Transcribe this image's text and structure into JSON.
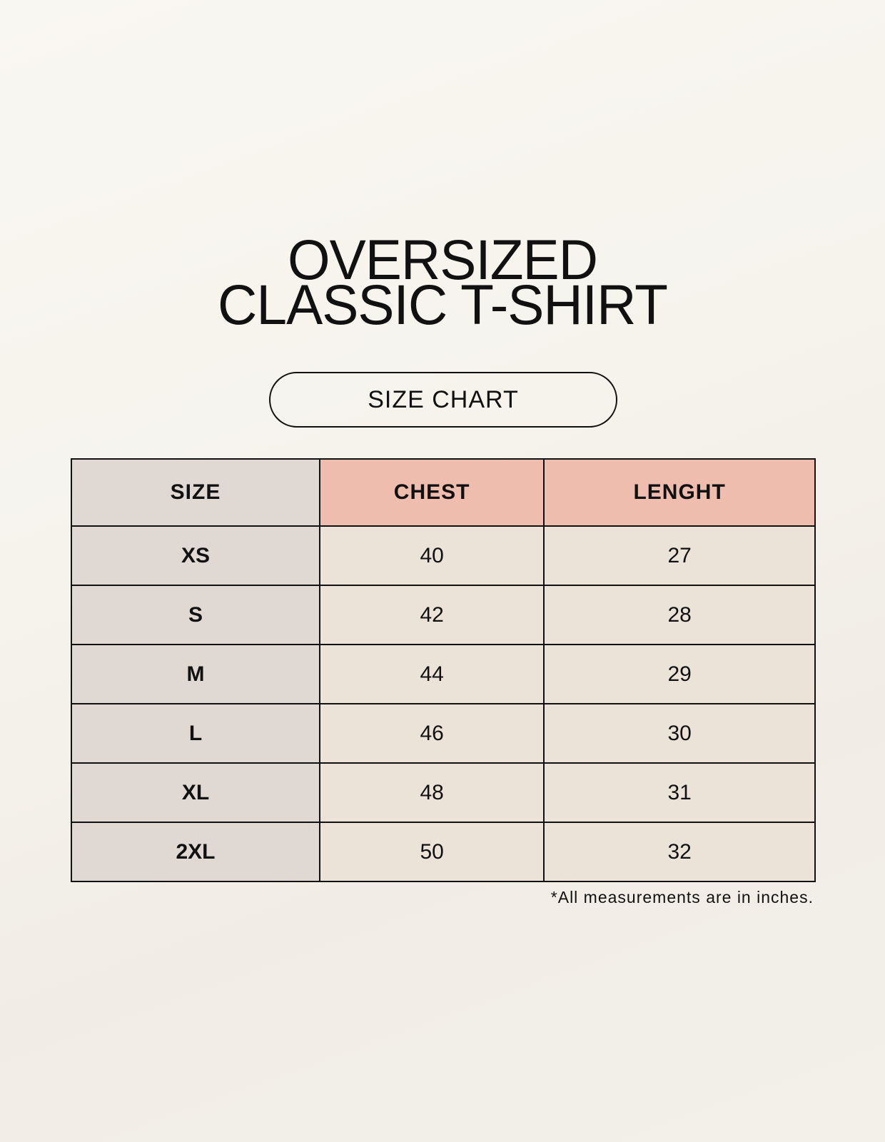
{
  "title": {
    "line1": "OVERSIZED",
    "line2": "CLASSIC T-SHIRT"
  },
  "badge": "SIZE CHART",
  "table": {
    "headers": [
      "SIZE",
      "CHEST",
      "LENGHT"
    ],
    "rows": [
      [
        "XS",
        "40",
        "27"
      ],
      [
        "S",
        "42",
        "28"
      ],
      [
        "M",
        "44",
        "29"
      ],
      [
        "L",
        "46",
        "30"
      ],
      [
        "XL",
        "48",
        "31"
      ],
      [
        "2XL",
        "50",
        "32"
      ]
    ]
  },
  "footnote": "*All measurements are in inches.",
  "colors": {
    "background": "#f8f5ef",
    "size_column": "#e0d8d2",
    "header_accent": "#eebdae",
    "cells": "#ebe2d8"
  }
}
